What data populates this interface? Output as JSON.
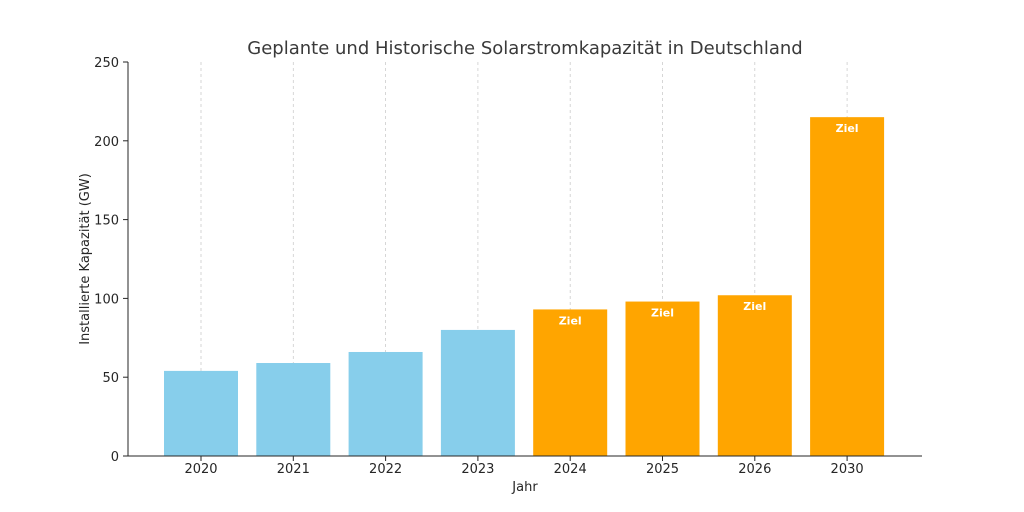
{
  "chart_data": {
    "type": "bar",
    "title": "Geplante und Historische Solarstromkapazität in Deutschland",
    "xlabel": "Jahr",
    "ylabel": "Installierte Kapazität (GW)",
    "ylim": [
      0,
      250
    ],
    "yticks": [
      0,
      50,
      100,
      150,
      200,
      250
    ],
    "grid": "vertical-dashed",
    "categories": [
      "2020",
      "2021",
      "2022",
      "2023",
      "2024",
      "2025",
      "2026",
      "2030"
    ],
    "values": [
      54,
      59,
      66,
      80,
      93,
      98,
      102,
      215
    ],
    "bar_labels": [
      "",
      "",
      "",
      "",
      "Ziel",
      "Ziel",
      "Ziel",
      "Ziel"
    ],
    "bar_colors": [
      "#87CEEB",
      "#87CEEB",
      "#87CEEB",
      "#87CEEB",
      "#FFA500",
      "#FFA500",
      "#FFA500",
      "#FFA500"
    ],
    "colors": {
      "axis": "#262626",
      "grid": "#cccccc"
    }
  }
}
